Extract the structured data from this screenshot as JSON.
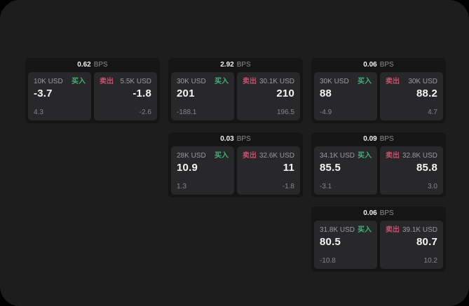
{
  "page": {
    "unit_label": "BPS",
    "buy_label": "买入",
    "sell_label": "卖出"
  },
  "colors": {
    "page_background": "#1d1d1e",
    "card_background": "#151515",
    "panel_background": "#28282a",
    "buy": "#3eb575",
    "sell": "#c94f6d"
  },
  "cards": [
    {
      "bps": "0.62",
      "buy": {
        "amount": "10K USD",
        "value": "-3.7",
        "delta": "4.3"
      },
      "sell": {
        "amount": "5.5K USD",
        "value": "-1.8",
        "delta": "-2.6"
      }
    },
    {
      "bps": "2.92",
      "buy": {
        "amount": "30K USD",
        "value": "201",
        "delta": "-188.1"
      },
      "sell": {
        "amount": "30.1K USD",
        "value": "210",
        "delta": "196.5"
      }
    },
    {
      "bps": "0.06",
      "buy": {
        "amount": "30K USD",
        "value": "88",
        "delta": "-4.9"
      },
      "sell": {
        "amount": "30K USD",
        "value": "88.2",
        "delta": "4.7"
      }
    },
    {
      "bps": "0.03",
      "buy": {
        "amount": "28K USD",
        "value": "10.9",
        "delta": "1.3"
      },
      "sell": {
        "amount": "32.6K USD",
        "value": "11",
        "delta": "-1.8"
      }
    },
    {
      "bps": "0.09",
      "buy": {
        "amount": "34.1K USD",
        "value": "85.5",
        "delta": "-3.1"
      },
      "sell": {
        "amount": "32.8K USD",
        "value": "85.8",
        "delta": "3.0"
      }
    },
    {
      "bps": "0.06",
      "buy": {
        "amount": "31.8K USD",
        "value": "80.5",
        "delta": "-10.8"
      },
      "sell": {
        "amount": "39.1K USD",
        "value": "80.7",
        "delta": "10.2"
      }
    }
  ]
}
